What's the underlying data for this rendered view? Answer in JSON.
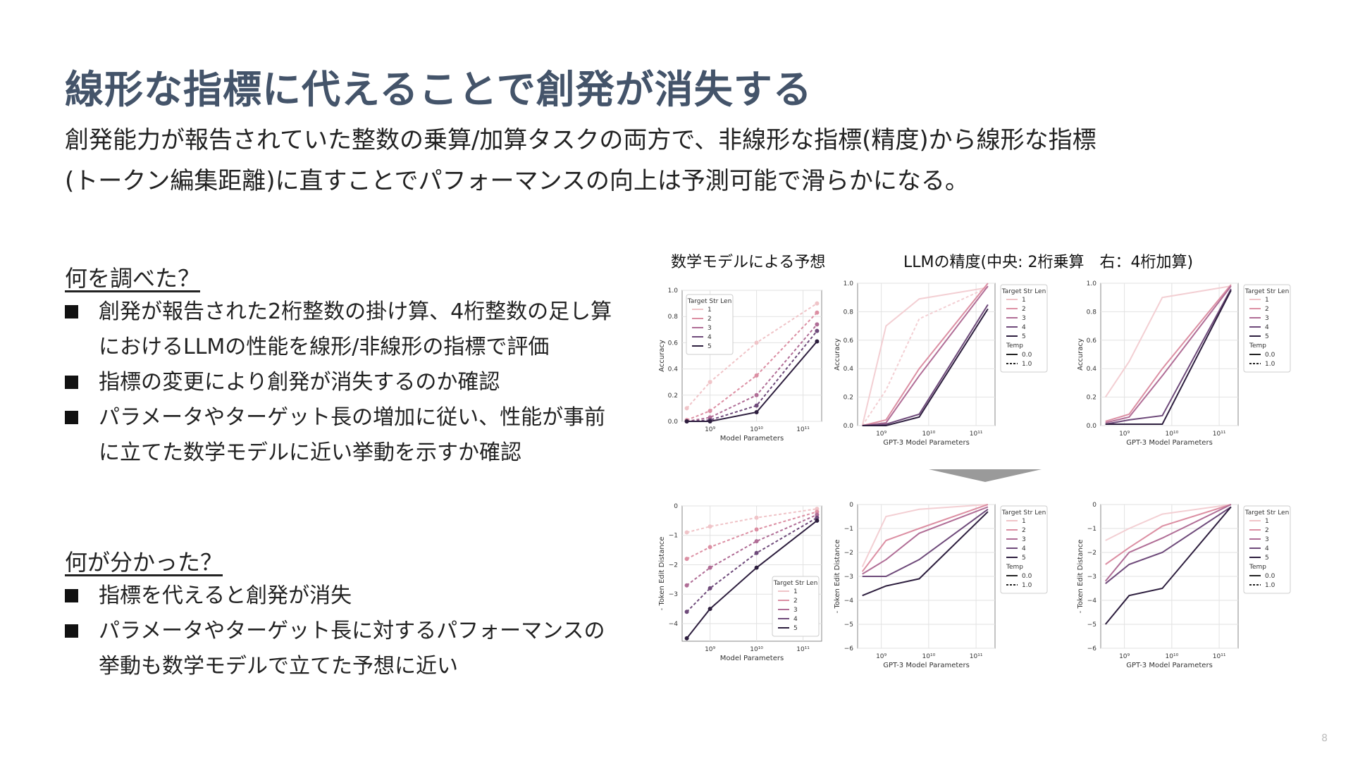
{
  "slide": {
    "title": "線形な指標に代えることで創発が消失する",
    "subtitle_line1": "創発能力が報告されていた整数の乗算/加算タスクの両方で、非線形な指標(精度)から線形な指標",
    "subtitle_line2": "(トークン編集距離)に直すことでパフォーマンスの向上は予測可能で滑らかになる。",
    "page_number": "8"
  },
  "left": {
    "section1_title": "何を調べた？",
    "section1_items": [
      "創発が報告された2桁整数の掛け算、4桁整数の足し算におけるLLMの性能を線形/非線形の指標で評価",
      "指標の変更により創発が消失するのか確認",
      "パラメータやターゲット長の増加に従い、性能が事前に立てた数学モデルに近い挙動を示すか確認"
    ],
    "section2_title": "何が分かった？",
    "section2_items": [
      "指標を代えると創発が消失",
      "パラメータやターゲット長に対するパフォーマンスの挙動も数学モデルで立てた予想に近い"
    ]
  },
  "figure": {
    "label_math_model": "数学モデルによる予想",
    "label_llm": "LLMの精度(中央: 2桁乗算　右：4桁加算)",
    "arrow": "down-arrow-icon"
  },
  "chart_data": [
    {
      "id": "model-accuracy",
      "type": "line",
      "xlabel": "Model Parameters",
      "ylabel": "Accuracy",
      "xscale": "log",
      "xlim": [
        8.4,
        11.4
      ],
      "ylim": [
        0,
        1.0
      ],
      "xticks": [
        9,
        10,
        11
      ],
      "xtick_labels": [
        "10⁹",
        "10¹⁰",
        "10¹¹"
      ],
      "yticks": [
        0,
        0.2,
        0.4,
        0.6,
        0.8,
        1.0
      ],
      "ytick_labels": [
        "0.0",
        "0.2",
        "0.4",
        "0.6",
        "0.8",
        "1.0"
      ],
      "legend": {
        "title": "Target Str Len",
        "position": "top-left",
        "entries": [
          "1",
          "2",
          "3",
          "4",
          "5"
        ]
      },
      "x": [
        8.5,
        9.0,
        10.0,
        11.3
      ],
      "series": [
        {
          "name": "1",
          "color": "#f0c4c8",
          "dash": "4,3",
          "values": [
            0.1,
            0.3,
            0.6,
            0.9
          ]
        },
        {
          "name": "2",
          "color": "#dc8fa3",
          "dash": "4,3",
          "values": [
            0.01,
            0.08,
            0.35,
            0.83
          ]
        },
        {
          "name": "3",
          "color": "#b06d96",
          "dash": "4,3",
          "values": [
            0.0,
            0.03,
            0.2,
            0.74
          ]
        },
        {
          "name": "4",
          "color": "#6e4a7a",
          "dash": "4,3",
          "values": [
            0.0,
            0.01,
            0.12,
            0.69
          ]
        },
        {
          "name": "5",
          "color": "#2d1e3e",
          "dash": "",
          "values": [
            0.0,
            0.0,
            0.07,
            0.61
          ]
        }
      ]
    },
    {
      "id": "llm-acc-mult",
      "type": "line",
      "xlabel": "GPT-3 Model Parameters",
      "ylabel": "Accuracy",
      "xscale": "log",
      "xlim": [
        8.5,
        11.4
      ],
      "ylim": [
        0,
        1.0
      ],
      "xticks": [
        9,
        10,
        11
      ],
      "xtick_labels": [
        "10⁹",
        "10¹⁰",
        "10¹¹"
      ],
      "yticks": [
        0,
        0.2,
        0.4,
        0.6,
        0.8,
        1.0
      ],
      "ytick_labels": [
        "0.0",
        "0.2",
        "0.4",
        "0.6",
        "0.8",
        "1.0"
      ],
      "legend": {
        "title": "Target Str Len",
        "position": "outside-right",
        "entries": [
          "1",
          "2",
          "3",
          "4",
          "5"
        ],
        "subtitle": "Temp",
        "temp_entries": [
          "0.0",
          "1.0"
        ]
      },
      "x": [
        8.6,
        9.1,
        9.8,
        11.25
      ],
      "series": [
        {
          "name": "1",
          "color": "#f3cfd3",
          "dash": "",
          "values": [
            0.0,
            0.7,
            0.89,
            0.97
          ]
        },
        {
          "name": "1",
          "color": "#f3cfd3",
          "dash": "4,3",
          "values": [
            0.0,
            0.25,
            0.75,
            0.97
          ]
        },
        {
          "name": "2",
          "color": "#dc8fa3",
          "dash": "",
          "values": [
            0.0,
            0.04,
            0.4,
            1.0
          ]
        },
        {
          "name": "3",
          "color": "#b06d96",
          "dash": "",
          "values": [
            0.0,
            0.02,
            0.35,
            0.98
          ]
        },
        {
          "name": "4",
          "color": "#6e4a7a",
          "dash": "",
          "values": [
            0.0,
            0.01,
            0.08,
            0.85
          ]
        },
        {
          "name": "5",
          "color": "#2d1e3e",
          "dash": "",
          "values": [
            0.0,
            0.0,
            0.06,
            0.82
          ]
        }
      ]
    },
    {
      "id": "llm-acc-add",
      "type": "line",
      "xlabel": "GPT-3 Model Parameters",
      "ylabel": "Accuracy",
      "xscale": "log",
      "xlim": [
        8.5,
        11.4
      ],
      "ylim": [
        0,
        1.0
      ],
      "xticks": [
        9,
        10,
        11
      ],
      "xtick_labels": [
        "10⁹",
        "10¹⁰",
        "10¹¹"
      ],
      "yticks": [
        0,
        0.2,
        0.4,
        0.6,
        0.8,
        1.0
      ],
      "ytick_labels": [
        "0.0",
        "0.2",
        "0.4",
        "0.6",
        "0.8",
        "1.0"
      ],
      "legend": {
        "title": "Target Str Len",
        "position": "outside-right",
        "entries": [
          "1",
          "2",
          "3",
          "4",
          "5"
        ],
        "subtitle": "Temp",
        "temp_entries": [
          "0.0",
          "1.0"
        ]
      },
      "x": [
        8.6,
        9.1,
        9.8,
        11.25
      ],
      "series": [
        {
          "name": "1",
          "color": "#f3cfd3",
          "dash": "",
          "values": [
            0.2,
            0.45,
            0.9,
            0.98
          ]
        },
        {
          "name": "2",
          "color": "#dc8fa3",
          "dash": "",
          "values": [
            0.03,
            0.08,
            0.4,
            0.99
          ]
        },
        {
          "name": "3",
          "color": "#b06d96",
          "dash": "",
          "values": [
            0.02,
            0.06,
            0.35,
            0.98
          ]
        },
        {
          "name": "4",
          "color": "#6e4a7a",
          "dash": "",
          "values": [
            0.01,
            0.04,
            0.07,
            0.96
          ]
        },
        {
          "name": "5",
          "color": "#2d1e3e",
          "dash": "",
          "values": [
            0.01,
            0.01,
            0.01,
            0.95
          ]
        }
      ]
    },
    {
      "id": "model-edit",
      "type": "line",
      "xlabel": "Model Parameters",
      "ylabel": "- Token Edit Distance",
      "xscale": "log",
      "xlim": [
        8.4,
        11.4
      ],
      "ylim": [
        -4.6,
        0
      ],
      "xticks": [
        9,
        10,
        11
      ],
      "xtick_labels": [
        "10⁹",
        "10¹⁰",
        "10¹¹"
      ],
      "yticks": [
        0,
        -1,
        -2,
        -3,
        -4
      ],
      "ytick_labels": [
        "0",
        "−1",
        "−2",
        "−3",
        "−4"
      ],
      "legend": {
        "title": "Target Str Len",
        "position": "bottom-right",
        "entries": [
          "1",
          "2",
          "3",
          "4",
          "5"
        ]
      },
      "x": [
        8.5,
        9.0,
        10.0,
        11.3
      ],
      "series": [
        {
          "name": "1",
          "color": "#f0c4c8",
          "dash": "4,3",
          "values": [
            -0.9,
            -0.7,
            -0.4,
            -0.1
          ]
        },
        {
          "name": "2",
          "color": "#dc8fa3",
          "dash": "4,3",
          "values": [
            -1.8,
            -1.4,
            -0.8,
            -0.2
          ]
        },
        {
          "name": "3",
          "color": "#b06d96",
          "dash": "4,3",
          "values": [
            -2.7,
            -2.1,
            -1.2,
            -0.3
          ]
        },
        {
          "name": "4",
          "color": "#6e4a7a",
          "dash": "4,3",
          "values": [
            -3.6,
            -2.8,
            -1.6,
            -0.4
          ]
        },
        {
          "name": "5",
          "color": "#2d1e3e",
          "dash": "",
          "values": [
            -4.5,
            -3.5,
            -2.1,
            -0.5
          ]
        }
      ]
    },
    {
      "id": "llm-edit-mult",
      "type": "line",
      "xlabel": "GPT-3 Model Parameters",
      "ylabel": "- Token Edit Distance",
      "xscale": "log",
      "xlim": [
        8.5,
        11.4
      ],
      "ylim": [
        -6,
        0
      ],
      "xticks": [
        9,
        10,
        11
      ],
      "xtick_labels": [
        "10⁹",
        "10¹⁰",
        "10¹¹"
      ],
      "yticks": [
        0,
        -1,
        -2,
        -3,
        -4,
        -5,
        -6
      ],
      "ytick_labels": [
        "0",
        "−1",
        "−2",
        "−3",
        "−4",
        "−5",
        "−6"
      ],
      "legend": {
        "title": "Target Str Len",
        "position": "outside-right",
        "entries": [
          "1",
          "2",
          "3",
          "4",
          "5"
        ],
        "subtitle": "Temp",
        "temp_entries": [
          "0.0",
          "1.0"
        ]
      },
      "x": [
        8.6,
        9.1,
        9.8,
        11.25
      ],
      "series": [
        {
          "name": "1",
          "color": "#f3cfd3",
          "dash": "",
          "values": [
            -2.6,
            -0.5,
            -0.2,
            0.0
          ]
        },
        {
          "name": "2",
          "color": "#dc8fa3",
          "dash": "",
          "values": [
            -2.8,
            -1.5,
            -1.0,
            0.0
          ]
        },
        {
          "name": "3",
          "color": "#b06d96",
          "dash": "",
          "values": [
            -2.9,
            -2.3,
            -1.2,
            -0.1
          ]
        },
        {
          "name": "4",
          "color": "#6e4a7a",
          "dash": "",
          "values": [
            -3.0,
            -3.0,
            -2.3,
            -0.2
          ]
        },
        {
          "name": "5",
          "color": "#2d1e3e",
          "dash": "",
          "values": [
            -3.8,
            -3.4,
            -3.1,
            -0.3
          ]
        }
      ]
    },
    {
      "id": "llm-edit-add",
      "type": "line",
      "xlabel": "GPT-3 Model Parameters",
      "ylabel": "- Token Edit Distance",
      "xscale": "log",
      "xlim": [
        8.5,
        11.4
      ],
      "ylim": [
        -6,
        0
      ],
      "xticks": [
        9,
        10,
        11
      ],
      "xtick_labels": [
        "10⁹",
        "10¹⁰",
        "10¹¹"
      ],
      "yticks": [
        0,
        -1,
        -2,
        -3,
        -4,
        -5,
        -6
      ],
      "ytick_labels": [
        "0",
        "−1",
        "−2",
        "−3",
        "−4",
        "−5",
        "−6"
      ],
      "legend": {
        "title": "Target Str Len",
        "position": "outside-right",
        "entries": [
          "1",
          "2",
          "3",
          "4",
          "5"
        ],
        "subtitle": "Temp",
        "temp_entries": [
          "0.0",
          "1.0"
        ]
      },
      "x": [
        8.6,
        9.1,
        9.8,
        11.25
      ],
      "series": [
        {
          "name": "1",
          "color": "#f3cfd3",
          "dash": "",
          "values": [
            -1.5,
            -1.0,
            -0.4,
            0.0
          ]
        },
        {
          "name": "2",
          "color": "#dc8fa3",
          "dash": "",
          "values": [
            -2.5,
            -1.8,
            -0.9,
            0.0
          ]
        },
        {
          "name": "3",
          "color": "#b06d96",
          "dash": "",
          "values": [
            -3.2,
            -2.0,
            -1.4,
            0.0
          ]
        },
        {
          "name": "4",
          "color": "#6e4a7a",
          "dash": "",
          "values": [
            -3.3,
            -2.5,
            -2.0,
            -0.1
          ]
        },
        {
          "name": "5",
          "color": "#2d1e3e",
          "dash": "",
          "values": [
            -5.0,
            -3.8,
            -3.5,
            -0.1
          ]
        }
      ]
    }
  ]
}
